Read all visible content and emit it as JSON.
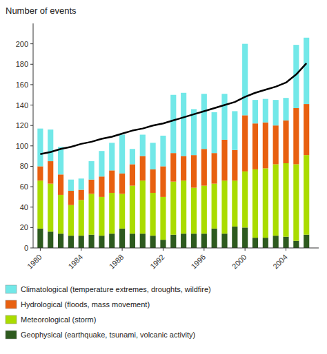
{
  "chart_data": {
    "type": "bar",
    "stacked": true,
    "y_label": "Number of events",
    "x": [
      1980,
      1981,
      1982,
      1983,
      1984,
      1985,
      1986,
      1987,
      1988,
      1989,
      1990,
      1991,
      1992,
      1993,
      1994,
      1995,
      1996,
      1997,
      1998,
      1999,
      2000,
      2001,
      2002,
      2003,
      2004,
      2005,
      2006
    ],
    "xlim": [
      1979.3,
      2007.2
    ],
    "xticks": [
      1980,
      1984,
      1988,
      1992,
      1996,
      2000,
      2004
    ],
    "ylim": [
      0,
      220
    ],
    "yticks": [
      0,
      20,
      40,
      60,
      80,
      100,
      120,
      140,
      160,
      180,
      200
    ],
    "grid": false,
    "legend": "bottom",
    "series": [
      {
        "name": "Geophysical (earthquake, tsunami, volcanic activity)",
        "color": "#2d5a1e",
        "values": [
          19,
          16,
          14,
          12,
          12,
          13,
          12,
          14,
          19,
          14,
          14,
          12,
          8,
          13,
          14,
          14,
          14,
          19,
          14,
          21,
          20,
          10,
          10,
          12,
          11,
          7,
          13
        ]
      },
      {
        "name": "Meteorological (storm)",
        "color": "#aadc00",
        "values": [
          47,
          47,
          38,
          30,
          35,
          40,
          38,
          40,
          34,
          47,
          52,
          42,
          42,
          52,
          52,
          45,
          47,
          44,
          52,
          45,
          55,
          67,
          68,
          70,
          72,
          75,
          78
        ]
      },
      {
        "name": "Hydrological (floods, mass movement)",
        "color": "#e86010",
        "values": [
          14,
          22,
          20,
          14,
          10,
          14,
          20,
          22,
          20,
          21,
          24,
          23,
          30,
          28,
          24,
          32,
          36,
          30,
          40,
          30,
          55,
          45,
          45,
          38,
          42,
          55,
          50
        ]
      },
      {
        "name": "Climatological (temperature extremes, droughts, wildfire)",
        "color": "#72e8e8",
        "values": [
          37,
          31,
          27,
          11,
          11,
          18,
          25,
          27,
          38,
          15,
          21,
          26,
          30,
          57,
          62,
          45,
          54,
          40,
          45,
          38,
          70,
          23,
          23,
          25,
          22,
          62,
          65
        ]
      },
      {
        "type": "line",
        "color": "#000000",
        "values": [
          92,
          94,
          97,
          99,
          102,
          104,
          107,
          109,
          112,
          115,
          117,
          120,
          122,
          125,
          128,
          131,
          134,
          137,
          140,
          143,
          148,
          152,
          155,
          158,
          162,
          170,
          181
        ]
      }
    ]
  }
}
